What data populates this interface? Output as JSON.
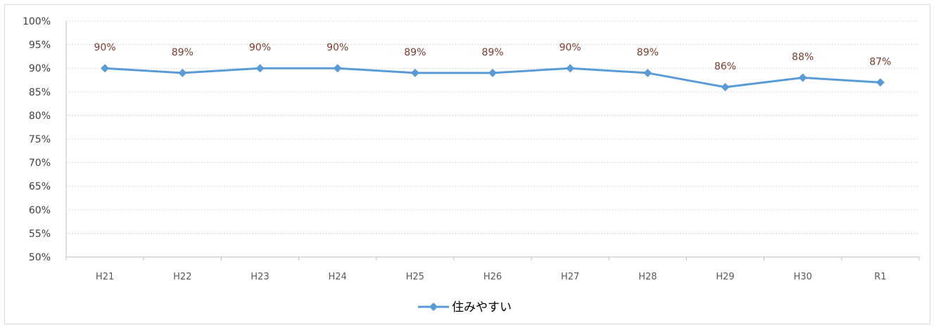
{
  "chart_data": {
    "type": "line",
    "categories": [
      "H21",
      "H22",
      "H23",
      "H24",
      "H25",
      "H26",
      "H27",
      "H28",
      "H29",
      "H30",
      "R1"
    ],
    "series": [
      {
        "name": "住みやすい",
        "values": [
          90,
          89,
          90,
          90,
          89,
          89,
          90,
          89,
          86,
          88,
          87
        ],
        "labels": [
          "90%",
          "89%",
          "90%",
          "90%",
          "89%",
          "89%",
          "90%",
          "89%",
          "86%",
          "88%",
          "87%"
        ],
        "color": "#5b9bd5",
        "marker": "diamond"
      }
    ],
    "yticks": [
      "50%",
      "55%",
      "60%",
      "65%",
      "70%",
      "75%",
      "80%",
      "85%",
      "90%",
      "95%",
      "100%"
    ],
    "ylim": [
      50,
      100
    ],
    "grid": true,
    "legend": "bottom",
    "colors": {
      "gridline": "#d9d9d9",
      "ytick_text": "#404040",
      "xtick_text": "#595959",
      "data_label": "#7b3b2f"
    }
  }
}
